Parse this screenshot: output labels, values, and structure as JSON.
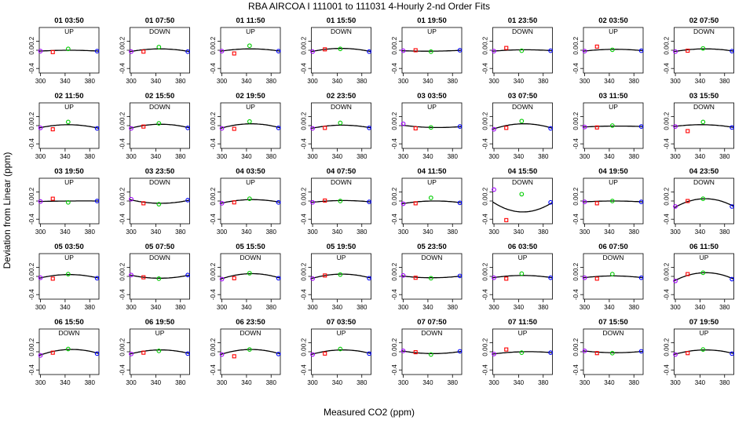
{
  "chart_data": {
    "type": "scatter",
    "title": "RBA   AIRCOA I   111001 to 111031   4-Hourly 2-nd Order Fits",
    "xlabel": "Measured CO2 (ppm)",
    "ylabel": "Deviation from Linear (ppm)",
    "xlim": [
      298,
      395
    ],
    "ylim": [
      -0.5,
      0.5
    ],
    "x_ticks": [
      "300",
      "340",
      "380"
    ],
    "y_ticks": [
      "-0.4",
      "0.0",
      "0.2"
    ],
    "grid": false,
    "standards_x": [
      300,
      320,
      345,
      392
    ],
    "marker_colors": [
      "#a000ff",
      "#ff0000",
      "#00cc00",
      "#0000ff"
    ],
    "panels": [
      {
        "label": "01 03:50",
        "dir": "UP",
        "y": [
          -0.02,
          -0.04,
          0.03,
          -0.02
        ],
        "curve": [
          -0.02,
          0.0,
          -0.02
        ]
      },
      {
        "label": "01 07:50",
        "dir": "DOWN",
        "y": [
          -0.03,
          -0.03,
          0.07,
          -0.03
        ],
        "curve": [
          -0.03,
          0.03,
          -0.03
        ]
      },
      {
        "label": "01 11:50",
        "dir": "UP",
        "y": [
          -0.02,
          -0.07,
          0.1,
          -0.02
        ],
        "curve": [
          -0.02,
          0.03,
          -0.02
        ]
      },
      {
        "label": "01 15:50",
        "dir": "DOWN",
        "y": [
          -0.03,
          0.02,
          0.03,
          -0.03
        ],
        "curve": [
          -0.03,
          0.04,
          -0.03
        ]
      },
      {
        "label": "01 19:50",
        "dir": "UP",
        "y": [
          -0.01,
          0.0,
          -0.03,
          0.0
        ],
        "curve": [
          -0.01,
          -0.02,
          0.0
        ]
      },
      {
        "label": "01 23:50",
        "dir": "DOWN",
        "y": [
          -0.02,
          0.05,
          -0.01,
          -0.01
        ],
        "curve": [
          -0.02,
          0.01,
          -0.01
        ]
      },
      {
        "label": "02 03:50",
        "dir": "UP",
        "y": [
          -0.02,
          0.08,
          0.01,
          -0.01
        ],
        "curve": [
          -0.02,
          0.02,
          -0.01
        ]
      },
      {
        "label": "02 07:50",
        "dir": "DOWN",
        "y": [
          -0.03,
          -0.01,
          0.04,
          -0.02
        ],
        "curve": [
          -0.03,
          0.03,
          -0.02
        ]
      },
      {
        "label": "02 11:50",
        "dir": "UP",
        "y": [
          -0.05,
          -0.08,
          0.08,
          -0.06
        ],
        "curve": [
          -0.05,
          0.02,
          -0.06
        ]
      },
      {
        "label": "02 15:50",
        "dir": "DOWN",
        "y": [
          -0.06,
          -0.02,
          0.05,
          -0.05
        ],
        "curve": [
          -0.06,
          0.03,
          -0.05
        ]
      },
      {
        "label": "02 19:50",
        "dir": "UP",
        "y": [
          -0.06,
          -0.07,
          0.09,
          -0.05
        ],
        "curve": [
          -0.06,
          0.04,
          -0.05
        ]
      },
      {
        "label": "02 23:50",
        "dir": "DOWN",
        "y": [
          -0.06,
          -0.05,
          0.06,
          -0.05
        ],
        "curve": [
          -0.06,
          0.01,
          -0.05
        ]
      },
      {
        "label": "03 03:50",
        "dir": "UP",
        "y": [
          0.04,
          -0.06,
          -0.04,
          -0.02
        ],
        "curve": [
          0.01,
          -0.04,
          -0.02
        ]
      },
      {
        "label": "03 07:50",
        "dir": "DOWN",
        "y": [
          -0.08,
          -0.05,
          0.1,
          -0.06
        ],
        "curve": [
          -0.08,
          0.04,
          -0.06
        ]
      },
      {
        "label": "03 11:50",
        "dir": "UP",
        "y": [
          -0.03,
          -0.04,
          0.0,
          -0.02
        ],
        "curve": [
          -0.03,
          -0.01,
          -0.02
        ]
      },
      {
        "label": "03 15:50",
        "dir": "DOWN",
        "y": [
          -0.02,
          -0.12,
          0.08,
          -0.04
        ],
        "curve": [
          -0.02,
          0.02,
          -0.04
        ]
      },
      {
        "label": "03 19:50",
        "dir": "UP",
        "y": [
          -0.01,
          0.05,
          -0.03,
          0.0
        ],
        "curve": [
          -0.01,
          0.0,
          0.0
        ]
      },
      {
        "label": "03 23:50",
        "dir": "DOWN",
        "y": [
          0.04,
          -0.05,
          -0.07,
          0.02
        ],
        "curve": [
          0.03,
          -0.05,
          0.02
        ]
      },
      {
        "label": "04 03:50",
        "dir": "UP",
        "y": [
          -0.05,
          -0.03,
          0.05,
          -0.03
        ],
        "curve": [
          -0.05,
          0.03,
          -0.03
        ]
      },
      {
        "label": "04 07:50",
        "dir": "DOWN",
        "y": [
          -0.03,
          0.01,
          0.0,
          -0.02
        ],
        "curve": [
          -0.03,
          0.01,
          -0.02
        ]
      },
      {
        "label": "04 11:50",
        "dir": "UP",
        "y": [
          -0.06,
          -0.05,
          0.07,
          -0.04
        ],
        "curve": [
          -0.06,
          0.0,
          -0.04
        ]
      },
      {
        "label": "04 15:50",
        "dir": "DOWN",
        "y": [
          0.25,
          -0.42,
          0.15,
          -0.03
        ],
        "curve": [
          -0.02,
          -0.24,
          -0.03
        ]
      },
      {
        "label": "04 19:50",
        "dir": "UP",
        "y": [
          -0.02,
          -0.05,
          0.0,
          -0.02
        ],
        "curve": [
          -0.02,
          0.0,
          -0.02
        ]
      },
      {
        "label": "04 23:50",
        "dir": "DOWN",
        "y": [
          -0.12,
          0.0,
          0.05,
          -0.12
        ],
        "curve": [
          -0.15,
          0.05,
          -0.12
        ]
      },
      {
        "label": "05 03:50",
        "dir": "UP",
        "y": [
          -0.03,
          -0.05,
          0.05,
          -0.04
        ],
        "curve": [
          -0.04,
          0.04,
          -0.04
        ]
      },
      {
        "label": "05 07:50",
        "dir": "DOWN",
        "y": [
          0.03,
          -0.02,
          -0.05,
          0.03
        ],
        "curve": [
          0.03,
          -0.04,
          0.03
        ]
      },
      {
        "label": "05 15:50",
        "dir": "DOWN",
        "y": [
          -0.06,
          -0.04,
          0.07,
          -0.04
        ],
        "curve": [
          -0.06,
          0.06,
          -0.04
        ]
      },
      {
        "label": "05 19:50",
        "dir": "UP",
        "y": [
          -0.05,
          0.02,
          0.04,
          -0.04
        ],
        "curve": [
          -0.05,
          0.05,
          -0.04
        ]
      },
      {
        "label": "05 23:50",
        "dir": "DOWN",
        "y": [
          0.02,
          -0.03,
          -0.04,
          0.01
        ],
        "curve": [
          0.01,
          -0.03,
          0.01
        ]
      },
      {
        "label": "06 03:50",
        "dir": "UP",
        "y": [
          -0.03,
          -0.05,
          0.06,
          -0.03
        ],
        "curve": [
          -0.03,
          0.02,
          -0.03
        ]
      },
      {
        "label": "06 07:50",
        "dir": "DOWN",
        "y": [
          -0.03,
          -0.05,
          0.05,
          -0.03
        ],
        "curve": [
          -0.03,
          0.01,
          -0.03
        ]
      },
      {
        "label": "06 11:50",
        "dir": "UP",
        "y": [
          -0.1,
          0.05,
          0.08,
          -0.06
        ],
        "curve": [
          -0.1,
          0.08,
          -0.06
        ]
      },
      {
        "label": "06 15:50",
        "dir": "DOWN",
        "y": [
          -0.08,
          -0.02,
          0.06,
          -0.04
        ],
        "curve": [
          -0.08,
          0.05,
          -0.04
        ]
      },
      {
        "label": "06 19:50",
        "dir": "UP",
        "y": [
          -0.05,
          -0.02,
          0.02,
          -0.04
        ],
        "curve": [
          -0.05,
          0.04,
          -0.04
        ]
      },
      {
        "label": "06 23:50",
        "dir": "DOWN",
        "y": [
          -0.06,
          -0.1,
          0.05,
          -0.05
        ],
        "curve": [
          -0.06,
          0.05,
          -0.05
        ]
      },
      {
        "label": "07 03:50",
        "dir": "UP",
        "y": [
          -0.06,
          -0.04,
          0.06,
          -0.04
        ],
        "curve": [
          -0.06,
          0.04,
          -0.04
        ]
      },
      {
        "label": "07 07:50",
        "dir": "DOWN",
        "y": [
          0.02,
          -0.01,
          -0.06,
          0.01
        ],
        "curve": [
          0.02,
          -0.04,
          0.01
        ]
      },
      {
        "label": "07 11:50",
        "dir": "UP",
        "y": [
          -0.05,
          0.05,
          -0.02,
          -0.02
        ],
        "curve": [
          -0.05,
          0.0,
          -0.02
        ]
      },
      {
        "label": "07 15:50",
        "dir": "DOWN",
        "y": [
          0.02,
          -0.03,
          -0.03,
          0.01
        ],
        "curve": [
          0.02,
          -0.02,
          0.01
        ]
      },
      {
        "label": "07 19:50",
        "dir": "UP",
        "y": [
          -0.06,
          -0.03,
          0.05,
          -0.04
        ],
        "curve": [
          -0.06,
          0.04,
          -0.04
        ]
      }
    ]
  }
}
